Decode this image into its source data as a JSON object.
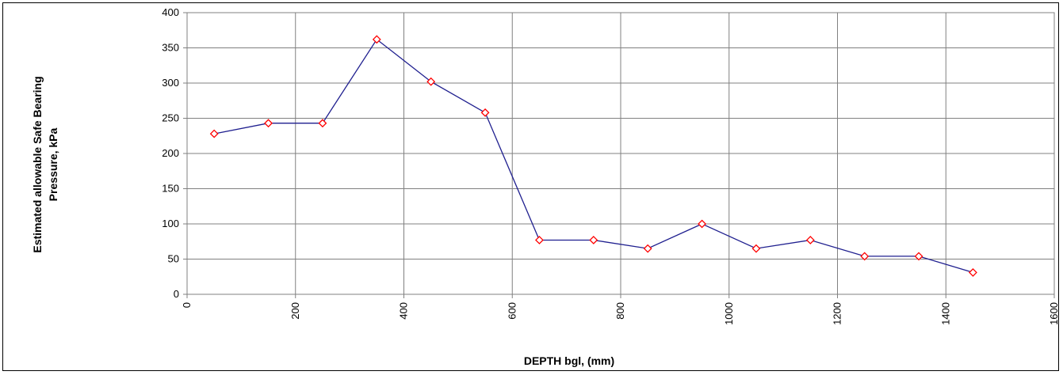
{
  "chart_data": {
    "type": "line",
    "title": "",
    "xlabel": "DEPTH bgl, (mm)",
    "ylabel_lines": [
      "Estimated allowable Safe Bearing",
      "Pressure, kPa"
    ],
    "xlim": [
      0,
      1600
    ],
    "ylim": [
      0,
      400
    ],
    "x_ticks": [
      0,
      200,
      400,
      600,
      800,
      1000,
      1200,
      1400,
      1600
    ],
    "y_ticks": [
      0,
      50,
      100,
      150,
      200,
      250,
      300,
      350,
      400
    ],
    "grid": true,
    "legend": "none",
    "series": [
      {
        "x": [
          50,
          150,
          250,
          350,
          450,
          550,
          650,
          750,
          850,
          950,
          1050,
          1150,
          1250,
          1350,
          1450
        ],
        "y": [
          228,
          243,
          243,
          362,
          302,
          258,
          77,
          77,
          65,
          100,
          65,
          77,
          54,
          54,
          31
        ],
        "line_color": "#1f1f8f",
        "marker": "diamond",
        "marker_color": "#ff0000"
      }
    ]
  }
}
